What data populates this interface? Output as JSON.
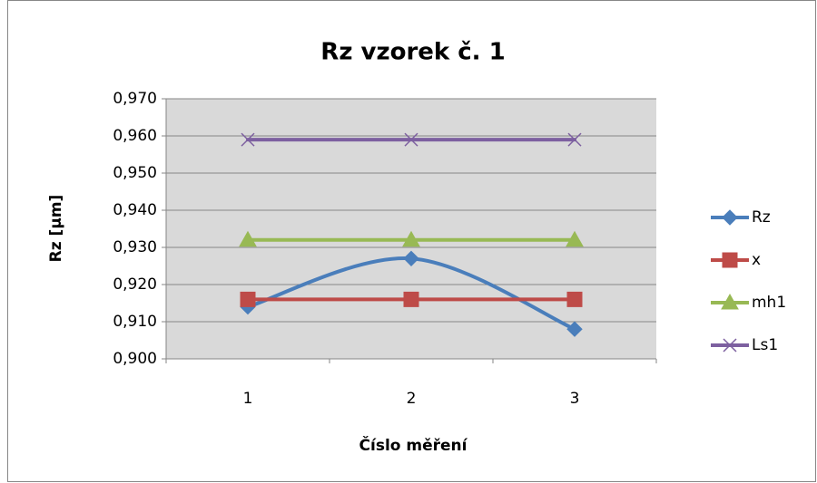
{
  "chart_data": {
    "type": "line",
    "title": "Rz vzorek č. 1",
    "x_label": "Číslo měření",
    "y_label": "Rz [µm]",
    "categories": [
      "1",
      "2",
      "3"
    ],
    "series": [
      {
        "name": "Rz",
        "color": "#4a7ebb",
        "marker": "diamond",
        "smooth": true,
        "values": [
          0.914,
          0.927,
          0.908
        ]
      },
      {
        "name": "x",
        "color": "#be4b48",
        "marker": "square",
        "smooth": false,
        "values": [
          0.916,
          0.916,
          0.916
        ]
      },
      {
        "name": "mh1",
        "color": "#98b954",
        "marker": "triangle",
        "smooth": false,
        "values": [
          0.932,
          0.932,
          0.932
        ]
      },
      {
        "name": "Ls1",
        "color": "#7d60a0",
        "marker": "x",
        "smooth": false,
        "values": [
          0.959,
          0.959,
          0.959
        ]
      }
    ],
    "ylim": [
      0.9,
      0.97
    ],
    "yticks": [
      {
        "value": 0.9,
        "label": "0,900"
      },
      {
        "value": 0.91,
        "label": "0,910"
      },
      {
        "value": 0.92,
        "label": "0,920"
      },
      {
        "value": 0.93,
        "label": "0,930"
      },
      {
        "value": 0.94,
        "label": "0,940"
      },
      {
        "value": 0.95,
        "label": "0,950"
      },
      {
        "value": 0.96,
        "label": "0,960"
      },
      {
        "value": 0.97,
        "label": "0,970"
      }
    ],
    "grid": true,
    "legend": "right"
  }
}
